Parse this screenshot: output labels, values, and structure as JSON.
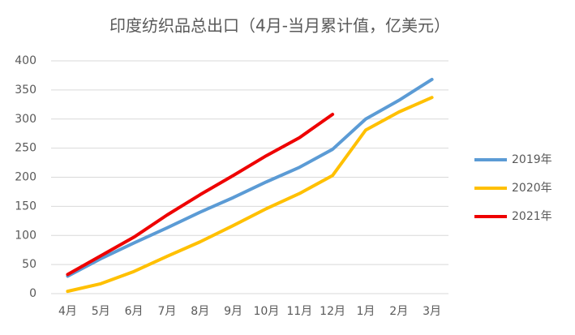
{
  "chart_data": {
    "type": "line",
    "title": "印度纺织品总出口（4月-当月累计值，亿美元）",
    "categories": [
      "4月",
      "5月",
      "6月",
      "7月",
      "8月",
      "9月",
      "10月",
      "11月",
      "12月",
      "1月",
      "2月",
      "3月"
    ],
    "series": [
      {
        "name": "2019年",
        "color": "#5b9bd5",
        "values": [
          30,
          60,
          87,
          113,
          140,
          165,
          192,
          217,
          248,
          300,
          332,
          368
        ]
      },
      {
        "name": "2020年",
        "color": "#ffc000",
        "values": [
          4,
          17,
          38,
          64,
          89,
          117,
          146,
          172,
          203,
          281,
          312,
          337
        ]
      },
      {
        "name": "2021年",
        "color": "#ee0000",
        "values": [
          33,
          65,
          97,
          135,
          170,
          203,
          237,
          268,
          308,
          null,
          null,
          null
        ]
      }
    ],
    "ylim": [
      0,
      400
    ],
    "yticks": [
      0,
      50,
      100,
      150,
      200,
      250,
      300,
      350,
      400
    ],
    "grid": true,
    "legend": "right"
  }
}
